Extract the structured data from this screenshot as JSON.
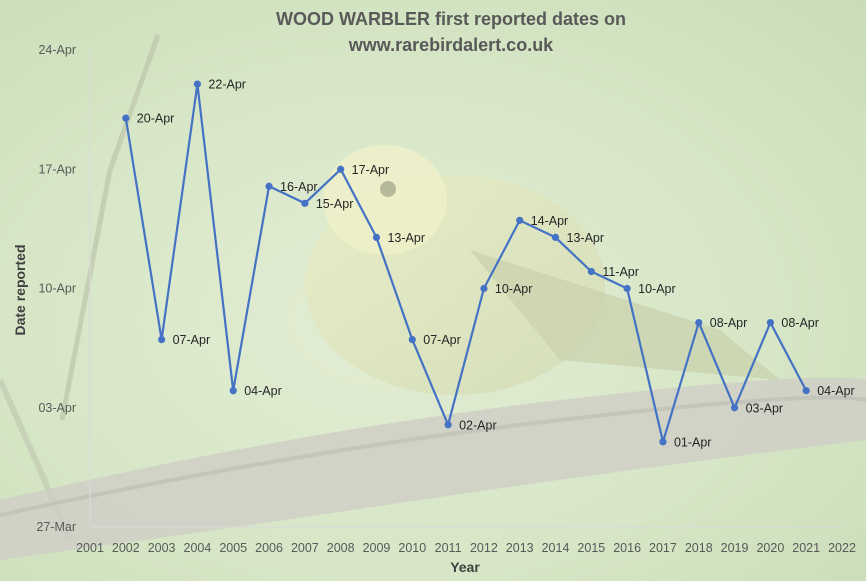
{
  "chart_data": {
    "type": "line",
    "title_line1": "WOOD WARBLER first reported dates on",
    "title_line2": "www.rarebirdalert.co.uk",
    "xlabel": "Year",
    "ylabel": "Date reported",
    "xlim": [
      2001,
      2022
    ],
    "x_ticks": [
      "2001",
      "2002",
      "2003",
      "2004",
      "2005",
      "2006",
      "2007",
      "2008",
      "2009",
      "2010",
      "2011",
      "2012",
      "2013",
      "2014",
      "2015",
      "2016",
      "2017",
      "2018",
      "2019",
      "2020",
      "2021",
      "2022"
    ],
    "ylim": [
      "27-Mar",
      "24-Apr"
    ],
    "y_ticks": [
      {
        "label": "24-Apr",
        "day": 28
      },
      {
        "label": "17-Apr",
        "day": 21
      },
      {
        "label": "10-Apr",
        "day": 14
      },
      {
        "label": "03-Apr",
        "day": 7
      },
      {
        "label": "27-Mar",
        "day": 0
      }
    ],
    "series": [
      {
        "color": "#4472C4",
        "points": [
          {
            "year": 2002,
            "day": 24,
            "label": "20-Apr"
          },
          {
            "year": 2003,
            "day": 11,
            "label": "07-Apr"
          },
          {
            "year": 2004,
            "day": 26,
            "label": "22-Apr"
          },
          {
            "year": 2005,
            "day": 8,
            "label": "04-Apr"
          },
          {
            "year": 2006,
            "day": 20,
            "label": "16-Apr"
          },
          {
            "year": 2007,
            "day": 19,
            "label": "15-Apr"
          },
          {
            "year": 2008,
            "day": 21,
            "label": "17-Apr"
          },
          {
            "year": 2009,
            "day": 17,
            "label": "13-Apr"
          },
          {
            "year": 2010,
            "day": 11,
            "label": "07-Apr"
          },
          {
            "year": 2011,
            "day": 6,
            "label": "02-Apr"
          },
          {
            "year": 2012,
            "day": 14,
            "label": "10-Apr"
          },
          {
            "year": 2013,
            "day": 18,
            "label": "14-Apr"
          },
          {
            "year": 2014,
            "day": 17,
            "label": "13-Apr"
          },
          {
            "year": 2015,
            "day": 15,
            "label": "11-Apr"
          },
          {
            "year": 2016,
            "day": 14,
            "label": "10-Apr"
          },
          {
            "year": 2017,
            "day": 5,
            "label": "01-Apr"
          },
          {
            "year": 2018,
            "day": 12,
            "label": "08-Apr"
          },
          {
            "year": 2019,
            "day": 7,
            "label": "03-Apr"
          },
          {
            "year": 2020,
            "day": 12,
            "label": "08-Apr"
          },
          {
            "year": 2021,
            "day": 8,
            "label": "04-Apr"
          }
        ]
      }
    ],
    "grid": false,
    "legend": "none"
  }
}
